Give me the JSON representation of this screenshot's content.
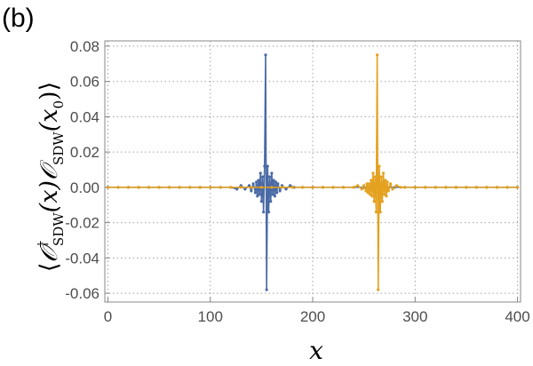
{
  "panel_label": "(b)",
  "colors": {
    "series1": "#4a6aa5",
    "series2": "#e3a11f",
    "axis": "#888888",
    "grid": "#a0a0a0"
  },
  "chart_data": {
    "type": "line",
    "title": "",
    "xlabel": "x",
    "ylabel": "⟨𝒪†SDW(x)𝒪SDW(x0)⟩",
    "ylabel_parts": {
      "open": "⟨",
      "op1": "𝒪",
      "dagger": "†",
      "sub1": "SDW",
      "arg1": "(x)",
      "op2": "𝒪",
      "sub2": "SDW",
      "arg2_open": "(x",
      "arg2_sub": "0",
      "arg2_close": ")",
      "close": "⟩"
    },
    "xlim": [
      -3,
      403
    ],
    "ylim": [
      -0.065,
      0.083
    ],
    "x_ticks": [
      0,
      100,
      200,
      300,
      400
    ],
    "y_ticks": [
      -0.06,
      -0.04,
      -0.02,
      0.0,
      0.02,
      0.04,
      0.06,
      0.08
    ],
    "x_tick_labels": [
      "0",
      "100",
      "200",
      "300",
      "400"
    ],
    "y_tick_labels": [
      "-0.06",
      "-0.04",
      "-0.02",
      "0.00",
      "0.02",
      "0.04",
      "0.06",
      "0.08"
    ],
    "grid": true,
    "grid_style": "dotted",
    "series": [
      {
        "color": "#4a6aa5",
        "x0": 154,
        "points": [
          [
            0,
            0
          ],
          [
            10,
            0
          ],
          [
            20,
            0
          ],
          [
            30,
            0
          ],
          [
            40,
            0
          ],
          [
            50,
            0
          ],
          [
            60,
            0
          ],
          [
            70,
            0
          ],
          [
            80,
            0
          ],
          [
            90,
            0
          ],
          [
            100,
            0
          ],
          [
            110,
            0
          ],
          [
            120,
            0
          ],
          [
            126,
            -0.001
          ],
          [
            130,
            0.001
          ],
          [
            134,
            -0.001
          ],
          [
            138,
            0.001
          ],
          [
            140,
            -0.002
          ],
          [
            142,
            0.002
          ],
          [
            144,
            -0.003
          ],
          [
            145,
            0.003
          ],
          [
            146,
            -0.005
          ],
          [
            147,
            0.004
          ],
          [
            148,
            -0.004
          ],
          [
            149,
            0.008
          ],
          [
            150,
            -0.008
          ],
          [
            151,
            0.006
          ],
          [
            152,
            -0.014
          ],
          [
            153,
            0.012
          ],
          [
            154,
            0.075
          ],
          [
            155,
            -0.058
          ],
          [
            156,
            0.012
          ],
          [
            157,
            -0.014
          ],
          [
            158,
            0.006
          ],
          [
            159,
            -0.008
          ],
          [
            160,
            0.008
          ],
          [
            161,
            -0.004
          ],
          [
            162,
            0.004
          ],
          [
            163,
            -0.005
          ],
          [
            164,
            0.003
          ],
          [
            165,
            -0.003
          ],
          [
            166,
            0.002
          ],
          [
            168,
            -0.002
          ],
          [
            170,
            0.001
          ],
          [
            174,
            -0.001
          ],
          [
            178,
            0.001
          ],
          [
            182,
            0
          ],
          [
            190,
            0
          ],
          [
            200,
            0
          ],
          [
            210,
            0
          ],
          [
            220,
            0
          ],
          [
            230,
            0
          ],
          [
            240,
            0
          ],
          [
            250,
            0
          ],
          [
            260,
            0
          ],
          [
            270,
            0
          ],
          [
            280,
            0
          ],
          [
            290,
            0
          ],
          [
            300,
            0
          ],
          [
            310,
            0
          ],
          [
            320,
            0
          ],
          [
            330,
            0
          ],
          [
            340,
            0
          ],
          [
            350,
            0
          ],
          [
            360,
            0
          ],
          [
            370,
            0
          ],
          [
            380,
            0
          ],
          [
            390,
            0
          ],
          [
            400,
            0
          ]
        ]
      },
      {
        "color": "#e3a11f",
        "x0": 263,
        "points": [
          [
            0,
            0
          ],
          [
            10,
            0
          ],
          [
            20,
            0
          ],
          [
            30,
            0
          ],
          [
            40,
            0
          ],
          [
            50,
            0
          ],
          [
            60,
            0
          ],
          [
            70,
            0
          ],
          [
            80,
            0
          ],
          [
            90,
            0
          ],
          [
            100,
            0
          ],
          [
            110,
            0
          ],
          [
            120,
            0
          ],
          [
            130,
            0
          ],
          [
            140,
            0
          ],
          [
            150,
            0
          ],
          [
            160,
            0
          ],
          [
            170,
            0
          ],
          [
            180,
            0
          ],
          [
            190,
            0
          ],
          [
            200,
            0
          ],
          [
            210,
            0
          ],
          [
            220,
            0
          ],
          [
            230,
            0
          ],
          [
            240,
            0
          ],
          [
            244,
            0.001
          ],
          [
            248,
            -0.001
          ],
          [
            250,
            0.001
          ],
          [
            252,
            -0.002
          ],
          [
            253,
            0.002
          ],
          [
            254,
            -0.003
          ],
          [
            255,
            0.002
          ],
          [
            256,
            -0.004
          ],
          [
            257,
            0.004
          ],
          [
            258,
            -0.005
          ],
          [
            259,
            0.008
          ],
          [
            260,
            -0.008
          ],
          [
            261,
            0.006
          ],
          [
            262,
            -0.014
          ],
          [
            263,
            0.075
          ],
          [
            264,
            -0.058
          ],
          [
            265,
            0.012
          ],
          [
            266,
            -0.014
          ],
          [
            267,
            0.006
          ],
          [
            268,
            -0.008
          ],
          [
            269,
            0.008
          ],
          [
            270,
            -0.004
          ],
          [
            271,
            0.004
          ],
          [
            272,
            -0.005
          ],
          [
            273,
            0.003
          ],
          [
            274,
            -0.002
          ],
          [
            276,
            0.002
          ],
          [
            278,
            -0.001
          ],
          [
            282,
            0.001
          ],
          [
            286,
            0
          ],
          [
            290,
            0
          ],
          [
            300,
            0
          ],
          [
            310,
            0
          ],
          [
            320,
            0
          ],
          [
            330,
            0
          ],
          [
            340,
            0
          ],
          [
            350,
            0
          ],
          [
            360,
            0
          ],
          [
            370,
            0
          ],
          [
            380,
            0
          ],
          [
            390,
            0
          ],
          [
            400,
            0
          ]
        ]
      }
    ]
  }
}
